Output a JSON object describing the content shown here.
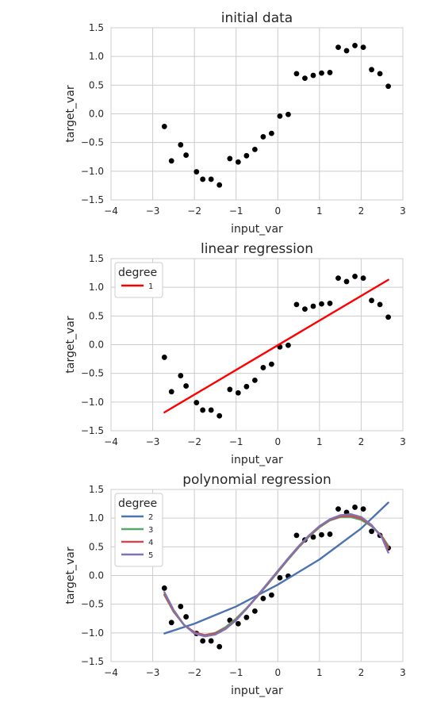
{
  "chart_data": [
    {
      "type": "scatter",
      "title": "initial data",
      "xlabel": "input_var",
      "ylabel": "target_var",
      "xlim": [
        -4,
        3
      ],
      "ylim": [
        -1.5,
        1.5
      ],
      "xticks": [
        "−4",
        "−3",
        "−2",
        "−1",
        "0",
        "1",
        "2",
        "3"
      ],
      "yticks": [
        "1.5",
        "1.0",
        "0.5",
        "0.0",
        "−0.5",
        "−1.0",
        "−1.5"
      ],
      "grid": true,
      "points": {
        "x": [
          -2.72,
          -2.55,
          -2.33,
          -2.2,
          -1.95,
          -1.8,
          -1.6,
          -1.4,
          -1.15,
          -0.95,
          -0.75,
          -0.55,
          -0.35,
          -0.15,
          0.05,
          0.25,
          0.45,
          0.65,
          0.85,
          1.05,
          1.25,
          1.45,
          1.65,
          1.85,
          2.05,
          2.25,
          2.45,
          2.65
        ],
        "y": [
          -0.22,
          -0.82,
          -0.54,
          -0.72,
          -1.01,
          -1.14,
          -1.14,
          -1.24,
          -0.78,
          -0.84,
          -0.73,
          -0.62,
          -0.4,
          -0.34,
          -0.04,
          -0.01,
          0.7,
          0.62,
          0.67,
          0.71,
          0.72,
          1.16,
          1.1,
          1.19,
          1.16,
          0.77,
          0.7,
          0.48
        ]
      }
    },
    {
      "type": "scatter",
      "title": "linear regression",
      "xlabel": "input_var",
      "ylabel": "target_var",
      "xlim": [
        -4,
        3
      ],
      "ylim": [
        -1.5,
        1.5
      ],
      "xticks": [
        "−4",
        "−3",
        "−2",
        "−1",
        "0",
        "1",
        "2",
        "3"
      ],
      "yticks": [
        "1.5",
        "1.0",
        "0.5",
        "0.0",
        "−0.5",
        "−1.0",
        "−1.5"
      ],
      "grid": true,
      "legend": {
        "title": "degree",
        "placement": "top-left",
        "entries": [
          {
            "label": "1",
            "color": "#ff0000"
          }
        ]
      },
      "points": {
        "x": [
          -2.72,
          -2.55,
          -2.33,
          -2.2,
          -1.95,
          -1.8,
          -1.6,
          -1.4,
          -1.15,
          -0.95,
          -0.75,
          -0.55,
          -0.35,
          -0.15,
          0.05,
          0.25,
          0.45,
          0.65,
          0.85,
          1.05,
          1.25,
          1.45,
          1.65,
          1.85,
          2.05,
          2.25,
          2.45,
          2.65
        ],
        "y": [
          -0.22,
          -0.82,
          -0.54,
          -0.72,
          -1.01,
          -1.14,
          -1.14,
          -1.24,
          -0.78,
          -0.84,
          -0.73,
          -0.62,
          -0.4,
          -0.34,
          -0.04,
          -0.01,
          0.7,
          0.62,
          0.67,
          0.71,
          0.72,
          1.16,
          1.1,
          1.19,
          1.16,
          0.77,
          0.7,
          0.48
        ]
      },
      "series": [
        {
          "name": "1",
          "color": "#ff0000",
          "x": [
            -2.72,
            2.65
          ],
          "y": [
            -1.18,
            1.13
          ]
        }
      ]
    },
    {
      "type": "scatter",
      "title": "polynomial regression",
      "xlabel": "input_var",
      "ylabel": "target_var",
      "xlim": [
        -4,
        3
      ],
      "ylim": [
        -1.5,
        1.5
      ],
      "xticks": [
        "−4",
        "−3",
        "−2",
        "−1",
        "0",
        "1",
        "2",
        "3"
      ],
      "yticks": [
        "1.5",
        "1.0",
        "0.5",
        "0.0",
        "−0.5",
        "−1.0",
        "−1.5"
      ],
      "grid": true,
      "legend": {
        "title": "degree",
        "placement": "top-left",
        "entries": [
          {
            "label": "2",
            "color": "#4c72b0"
          },
          {
            "label": "3",
            "color": "#55a868"
          },
          {
            "label": "4",
            "color": "#c44e52"
          },
          {
            "label": "5",
            "color": "#8172b2"
          }
        ]
      },
      "points": {
        "x": [
          -2.72,
          -2.55,
          -2.33,
          -2.2,
          -1.95,
          -1.8,
          -1.6,
          -1.4,
          -1.15,
          -0.95,
          -0.75,
          -0.55,
          -0.35,
          -0.15,
          0.05,
          0.25,
          0.45,
          0.65,
          0.85,
          1.05,
          1.25,
          1.45,
          1.65,
          1.85,
          2.05,
          2.25,
          2.45,
          2.65
        ],
        "y": [
          -0.22,
          -0.82,
          -0.54,
          -0.72,
          -1.01,
          -1.14,
          -1.14,
          -1.24,
          -0.78,
          -0.84,
          -0.73,
          -0.62,
          -0.4,
          -0.34,
          -0.04,
          -0.01,
          0.7,
          0.62,
          0.67,
          0.71,
          0.72,
          1.16,
          1.1,
          1.19,
          1.16,
          0.77,
          0.7,
          0.48
        ]
      },
      "series": [
        {
          "name": "2",
          "color": "#4c72b0",
          "x": [
            -2.72,
            -2.0,
            -1.0,
            0.0,
            1.0,
            2.0,
            2.65
          ],
          "y": [
            -1.01,
            -0.84,
            -0.54,
            -0.16,
            0.28,
            0.82,
            1.27
          ]
        },
        {
          "name": "3",
          "color": "#55a868",
          "x": [
            -2.72,
            -2.5,
            -2.25,
            -2.0,
            -1.75,
            -1.5,
            -1.25,
            -1.0,
            -0.75,
            -0.5,
            -0.25,
            0.0,
            0.25,
            0.5,
            0.75,
            1.0,
            1.25,
            1.5,
            1.75,
            2.0,
            2.25,
            2.5,
            2.65
          ],
          "y": [
            -0.34,
            -0.63,
            -0.86,
            -0.99,
            -1.04,
            -1.0,
            -0.9,
            -0.75,
            -0.57,
            -0.37,
            -0.16,
            0.06,
            0.28,
            0.49,
            0.68,
            0.84,
            0.96,
            1.02,
            1.02,
            0.97,
            0.86,
            0.68,
            0.52
          ]
        },
        {
          "name": "4",
          "color": "#c44e52",
          "x": [
            -2.72,
            -2.5,
            -2.25,
            -2.0,
            -1.75,
            -1.5,
            -1.25,
            -1.0,
            -0.75,
            -0.5,
            -0.25,
            0.0,
            0.25,
            0.5,
            0.75,
            1.0,
            1.25,
            1.5,
            1.75,
            2.0,
            2.25,
            2.5,
            2.65
          ],
          "y": [
            -0.33,
            -0.62,
            -0.86,
            -0.99,
            -1.04,
            -1.01,
            -0.92,
            -0.77,
            -0.58,
            -0.37,
            -0.15,
            0.07,
            0.29,
            0.5,
            0.69,
            0.85,
            0.97,
            1.03,
            1.04,
            0.99,
            0.87,
            0.68,
            0.48
          ]
        },
        {
          "name": "5",
          "color": "#8172b2",
          "x": [
            -2.72,
            -2.5,
            -2.25,
            -2.0,
            -1.75,
            -1.5,
            -1.25,
            -1.0,
            -0.75,
            -0.5,
            -0.25,
            0.0,
            0.25,
            0.5,
            0.75,
            1.0,
            1.25,
            1.5,
            1.75,
            2.0,
            2.25,
            2.5,
            2.65
          ],
          "y": [
            -0.29,
            -0.6,
            -0.86,
            -1.01,
            -1.06,
            -1.03,
            -0.93,
            -0.78,
            -0.58,
            -0.36,
            -0.14,
            0.08,
            0.3,
            0.51,
            0.7,
            0.86,
            0.98,
            1.05,
            1.07,
            1.02,
            0.88,
            0.66,
            0.4
          ]
        }
      ]
    }
  ]
}
